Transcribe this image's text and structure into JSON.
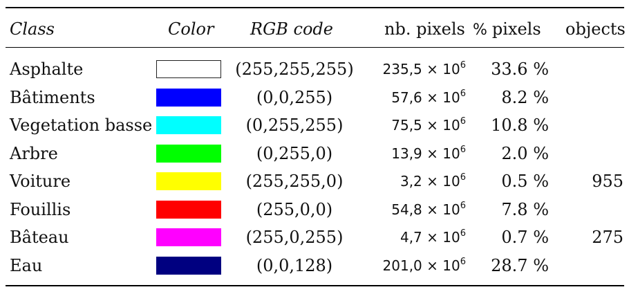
{
  "header": {
    "class": "Class",
    "color": "Color",
    "rgb": "RGB code",
    "nb_pixels": "nb. pixels",
    "pct_pixels_a": "%",
    "pct_pixels_b": "pixels",
    "objects": "objects"
  },
  "rows": [
    {
      "class": "Asphalte",
      "color": "#ffffff",
      "rgb": "(255,255,255)",
      "pixels": "235,5",
      "exp": "6",
      "pct": "33.6 %",
      "objects": ""
    },
    {
      "class": "Bâtiments",
      "color": "#0000ff",
      "rgb": "(0,0,255)",
      "pixels": "57,6",
      "exp": "6",
      "pct": "8.2 %",
      "objects": ""
    },
    {
      "class": "Vegetation basse",
      "color": "#00ffff",
      "rgb": "(0,255,255)",
      "pixels": "75,5",
      "exp": "6",
      "pct": "10.8 %",
      "objects": ""
    },
    {
      "class": "Arbre",
      "color": "#00ff00",
      "rgb": "(0,255,0)",
      "pixels": "13,9",
      "exp": "6",
      "pct": "2.0 %",
      "objects": ""
    },
    {
      "class": "Voiture",
      "color": "#ffff00",
      "rgb": "(255,255,0)",
      "pixels": "3,2",
      "exp": "6",
      "pct": "0.5 %",
      "objects": "955"
    },
    {
      "class": "Fouillis",
      "color": "#ff0000",
      "rgb": "(255,0,0)",
      "pixels": "54,8",
      "exp": "6",
      "pct": "7.8 %",
      "objects": ""
    },
    {
      "class": "Bâteau",
      "color": "#ff00ff",
      "rgb": "(255,0,255)",
      "pixels": "4,7",
      "exp": "6",
      "pct": "0.7 %",
      "objects": "275"
    },
    {
      "class": "Eau",
      "color": "#000080",
      "rgb": "(0,0,128)",
      "pixels": "201,0",
      "exp": "6",
      "pct": "28.7 %",
      "objects": ""
    }
  ],
  "times_sign": "× 10"
}
